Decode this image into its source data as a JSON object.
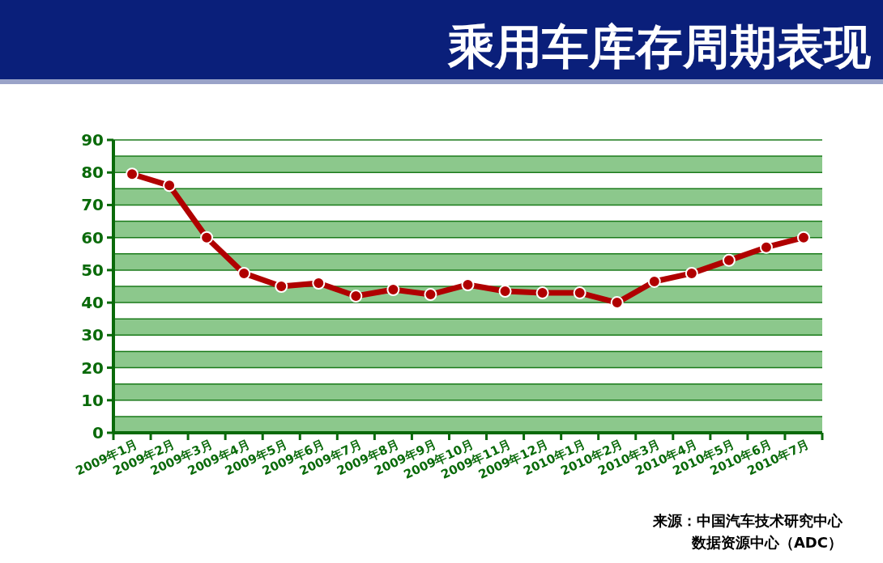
{
  "chart_data": {
    "type": "line",
    "title": "乘用车库存周期表现",
    "categories": [
      "2009年1月",
      "2009年2月",
      "2009年3月",
      "2009年4月",
      "2009年5月",
      "2009年6月",
      "2009年7月",
      "2009年8月",
      "2009年9月",
      "2009年10月",
      "2009年11月",
      "2009年12月",
      "2010年1月",
      "2010年2月",
      "2010年3月",
      "2010年4月",
      "2010年5月",
      "2010年6月",
      "2010年7月"
    ],
    "series": [
      {
        "color": "#b00000",
        "values": [
          79.5,
          76,
          60,
          49,
          45,
          46,
          42,
          44,
          42.5,
          45.5,
          43.5,
          43,
          43,
          40,
          46.5,
          49,
          53,
          57,
          60
        ]
      }
    ],
    "ylim": [
      0,
      90
    ],
    "yticks": [
      0,
      10,
      20,
      30,
      40,
      50,
      60,
      70,
      80,
      90
    ],
    "bands": [
      {
        "axis": "y",
        "from": 0,
        "to": 5,
        "color": "#8cc88c"
      },
      {
        "axis": "y",
        "from": 10,
        "to": 15,
        "color": "#8cc88c"
      },
      {
        "axis": "y",
        "from": 20,
        "to": 25,
        "color": "#8cc88c"
      },
      {
        "axis": "y",
        "from": 30,
        "to": 35,
        "color": "#8cc88c"
      },
      {
        "axis": "y",
        "from": 40,
        "to": 45,
        "color": "#8cc88c"
      },
      {
        "axis": "y",
        "from": 50,
        "to": 55,
        "color": "#8cc88c"
      },
      {
        "axis": "y",
        "from": 60,
        "to": 65,
        "color": "#8cc88c"
      },
      {
        "axis": "y",
        "from": 70,
        "to": 75,
        "color": "#8cc88c"
      },
      {
        "axis": "y",
        "from": 80,
        "to": 85,
        "color": "#8cc88c"
      }
    ],
    "grid": "y",
    "marker": "circle",
    "line_style": "solid",
    "annotations": [
      "来源：中国汽车技术研究中心",
      "数据资源中心（ADC）"
    ]
  }
}
